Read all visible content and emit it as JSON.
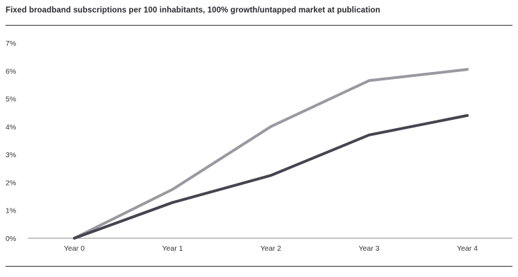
{
  "chart_data": {
    "type": "line",
    "title": "Fixed broadband subscriptions per 100 inhabitants, 100% growth/untapped market at publication",
    "xlabel": "",
    "ylabel": "",
    "categories": [
      "Year 0",
      "Year 1",
      "Year 2",
      "Year 3",
      "Year 4"
    ],
    "ylim": [
      0,
      7
    ],
    "yticks": [
      "0%",
      "1%",
      "2%",
      "3%",
      "4%",
      "5%",
      "6%",
      "7%"
    ],
    "grid": false,
    "series": [
      {
        "values": [
          0.0,
          1.75,
          4.0,
          5.65,
          6.05
        ],
        "color": "#9a98a0"
      },
      {
        "values": [
          0.0,
          1.28,
          2.25,
          3.7,
          4.4
        ],
        "color": "#45444f"
      }
    ]
  }
}
